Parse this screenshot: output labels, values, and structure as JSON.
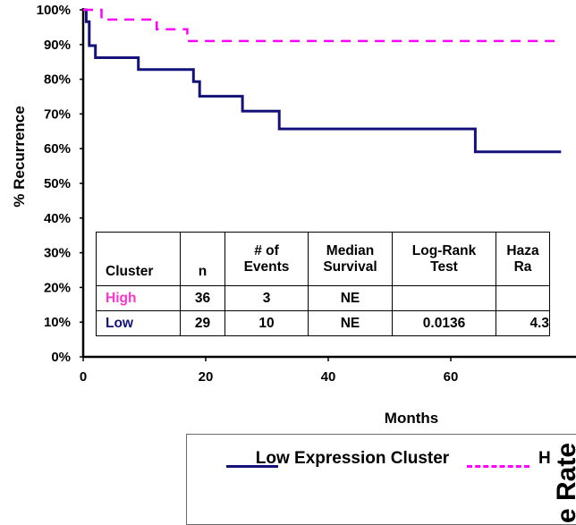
{
  "chart_data": {
    "type": "line",
    "subtype": "kaplan-meier step curve",
    "title": "",
    "xlabel": "Months",
    "ylabel": "% Recurrence",
    "xlim": [
      0,
      78
    ],
    "ylim": [
      0,
      100
    ],
    "x_ticks": [
      0,
      20,
      40,
      60
    ],
    "y_ticks": [
      0,
      10,
      20,
      30,
      40,
      50,
      60,
      70,
      80,
      90,
      100
    ],
    "y_tick_labels": [
      "0%",
      "10%",
      "20%",
      "30%",
      "40%",
      "50%",
      "60%",
      "70%",
      "80%",
      "90%",
      "100%"
    ],
    "grid": false,
    "legend_position": "bottom",
    "series": [
      {
        "name": "Low Expression Cluster",
        "style": "solid",
        "color": "#14127a",
        "x": [
          0,
          0.5,
          1,
          2,
          9,
          18,
          19,
          26,
          32,
          64,
          78
        ],
        "y": [
          100,
          96.6,
          89.7,
          86.2,
          82.8,
          79.3,
          75.1,
          70.8,
          65.7,
          59.1,
          59.1
        ]
      },
      {
        "name": "High Expression Cluster",
        "style": "dashed",
        "color": "#ff00ff",
        "x": [
          0,
          3,
          12,
          17,
          78
        ],
        "y": [
          100,
          97.2,
          94.4,
          91.0,
          91.0
        ]
      }
    ]
  },
  "table": {
    "headers": [
      [
        "Cluster"
      ],
      [
        "n"
      ],
      [
        "# of",
        "Events"
      ],
      [
        "Median",
        "Survival"
      ],
      [
        "Log-Rank",
        "Test"
      ],
      [
        "Haza",
        "Ra"
      ]
    ],
    "rows": [
      {
        "cluster": "High",
        "color": "#ff33cc",
        "n": "36",
        "events": "3",
        "median": "NE",
        "logrank": "",
        "hazard": ""
      },
      {
        "cluster": "Low",
        "color": "#14127a",
        "n": "29",
        "events": "10",
        "median": "NE",
        "logrank": "0.0136",
        "hazard": "4.3"
      }
    ]
  },
  "legend": {
    "low_label": "Low Expression Cluster",
    "high_label": "H"
  },
  "side_title": "e Rate"
}
